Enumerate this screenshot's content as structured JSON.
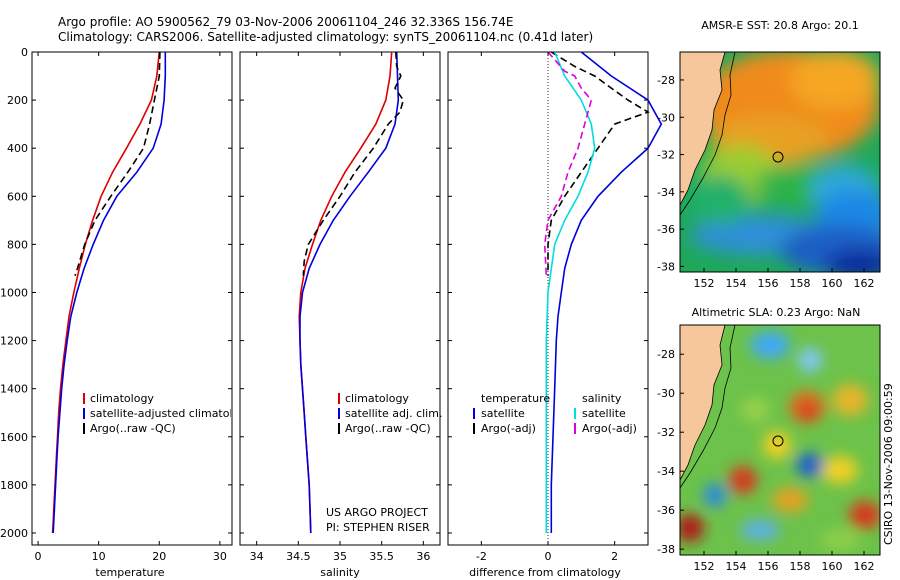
{
  "title_line1": "Argo profile: AO 5900562_79 03-Nov-2006 20061104_246 32.336S 156.74E",
  "title_line2": "Climatology: CARS2006. Satellite-adjusted climatology: synTS_20061104.nc (0.41d later)",
  "credit": "US ARGO PROJECT",
  "pi": "PI: STEPHEN RISER",
  "footer_vertical": "CSIRO 13-Nov-2006 09:00:59",
  "colors": {
    "climatology": "#dd0000",
    "satellite": "#0000dd",
    "argo": "#000000",
    "sat_salinity": "#00dddd",
    "argo_salinity": "#dd00dd",
    "land": "#f5c79a"
  },
  "chart_data": [
    {
      "type": "line",
      "xlabel": "temperature",
      "xlim": [
        -1,
        32
      ],
      "ylim": [
        0,
        2050
      ],
      "y_reversed": true,
      "xticks": [
        0,
        10,
        20,
        30
      ],
      "yticks": [
        0,
        200,
        400,
        600,
        800,
        1000,
        1200,
        1400,
        1600,
        1800,
        2000
      ],
      "legend": [
        "climatology",
        "satellite-adjusted climatology",
        "Argo(..raw -QC)"
      ],
      "series": [
        {
          "name": "climatology",
          "style": "solid",
          "color": "#dd0000",
          "points": [
            [
              20,
              0
            ],
            [
              19.6,
              100
            ],
            [
              18.7,
              200
            ],
            [
              16.8,
              300
            ],
            [
              14.6,
              400
            ],
            [
              12.3,
              500
            ],
            [
              10.4,
              600
            ],
            [
              9.0,
              700
            ],
            [
              7.8,
              800
            ],
            [
              6.8,
              900
            ],
            [
              5.9,
              1000
            ],
            [
              5.1,
              1100
            ],
            [
              4.6,
              1200
            ],
            [
              4.1,
              1300
            ],
            [
              3.7,
              1400
            ],
            [
              3.4,
              1500
            ],
            [
              3.2,
              1600
            ],
            [
              3.0,
              1700
            ],
            [
              2.8,
              1800
            ],
            [
              2.6,
              1900
            ],
            [
              2.4,
              2000
            ]
          ]
        },
        {
          "name": "satellite-adjusted climatology",
          "style": "solid",
          "color": "#0000dd",
          "points": [
            [
              21.0,
              0
            ],
            [
              21.0,
              100
            ],
            [
              20.8,
              200
            ],
            [
              20.3,
              300
            ],
            [
              19.0,
              400
            ],
            [
              16.3,
              500
            ],
            [
              13.0,
              600
            ],
            [
              10.8,
              700
            ],
            [
              9.1,
              800
            ],
            [
              7.6,
              900
            ],
            [
              6.4,
              1000
            ],
            [
              5.4,
              1100
            ],
            [
              4.8,
              1200
            ],
            [
              4.3,
              1300
            ],
            [
              3.9,
              1400
            ],
            [
              3.6,
              1500
            ],
            [
              3.3,
              1600
            ],
            [
              3.1,
              1700
            ],
            [
              2.9,
              1800
            ],
            [
              2.7,
              1900
            ],
            [
              2.5,
              2000
            ]
          ]
        },
        {
          "name": "Argo(..raw -QC)",
          "style": "dashed",
          "color": "#000000",
          "points": [
            [
              20.1,
              0
            ],
            [
              20.0,
              100
            ],
            [
              19.2,
              200
            ],
            [
              18.4,
              300
            ],
            [
              17.4,
              400
            ],
            [
              14.8,
              500
            ],
            [
              12.0,
              600
            ],
            [
              9.4,
              700
            ],
            [
              7.7,
              800
            ],
            [
              6.5,
              900
            ],
            [
              6.1,
              930
            ]
          ]
        }
      ]
    },
    {
      "type": "line",
      "xlabel": "salinity",
      "xlim": [
        33.8,
        36.2
      ],
      "ylim": [
        0,
        2050
      ],
      "y_reversed": true,
      "xticks": [
        34,
        34.5,
        35,
        35.5,
        36
      ],
      "legend": [
        "climatology",
        "satellite adj. clim.",
        "Argo(..raw -QC)"
      ],
      "series": [
        {
          "name": "climatology",
          "style": "solid",
          "color": "#dd0000",
          "points": [
            [
              35.62,
              0
            ],
            [
              35.6,
              100
            ],
            [
              35.55,
              200
            ],
            [
              35.43,
              300
            ],
            [
              35.25,
              400
            ],
            [
              35.06,
              500
            ],
            [
              34.9,
              600
            ],
            [
              34.77,
              700
            ],
            [
              34.67,
              800
            ],
            [
              34.58,
              900
            ],
            [
              34.53,
              1000
            ],
            [
              34.51,
              1100
            ],
            [
              34.52,
              1200
            ],
            [
              34.53,
              1300
            ],
            [
              34.55,
              1400
            ],
            [
              34.57,
              1500
            ],
            [
              34.59,
              1600
            ],
            [
              34.61,
              1700
            ],
            [
              34.63,
              1800
            ],
            [
              34.64,
              1900
            ],
            [
              34.65,
              2000
            ]
          ]
        },
        {
          "name": "satellite adj. clim.",
          "style": "solid",
          "color": "#0000dd",
          "points": [
            [
              35.68,
              0
            ],
            [
              35.69,
              100
            ],
            [
              35.7,
              200
            ],
            [
              35.66,
              300
            ],
            [
              35.55,
              400
            ],
            [
              35.34,
              500
            ],
            [
              35.12,
              600
            ],
            [
              34.92,
              700
            ],
            [
              34.76,
              800
            ],
            [
              34.63,
              900
            ],
            [
              34.55,
              1000
            ],
            [
              34.52,
              1100
            ],
            [
              34.52,
              1200
            ],
            [
              34.53,
              1300
            ],
            [
              34.55,
              1400
            ],
            [
              34.57,
              1500
            ],
            [
              34.59,
              1600
            ],
            [
              34.61,
              1700
            ],
            [
              34.63,
              1800
            ],
            [
              34.64,
              1900
            ],
            [
              34.65,
              2000
            ]
          ]
        },
        {
          "name": "Argo(..raw -QC)",
          "style": "dashed",
          "color": "#000000",
          "points": [
            [
              35.67,
              0
            ],
            [
              35.68,
              60
            ],
            [
              35.73,
              100
            ],
            [
              35.66,
              150
            ],
            [
              35.76,
              200
            ],
            [
              35.72,
              250
            ],
            [
              35.58,
              300
            ],
            [
              35.4,
              400
            ],
            [
              35.18,
              500
            ],
            [
              35.0,
              600
            ],
            [
              34.8,
              700
            ],
            [
              34.62,
              800
            ],
            [
              34.57,
              870
            ],
            [
              34.56,
              930
            ]
          ]
        }
      ]
    },
    {
      "type": "line",
      "xlabel": "difference from climatology",
      "xlim": [
        -3,
        3
      ],
      "ylim": [
        0,
        2050
      ],
      "y_reversed": true,
      "xticks": [
        -2,
        0,
        2
      ],
      "zero_line": "dotted",
      "legend_groups": [
        {
          "header": "temperature",
          "entries": [
            "satellite",
            "Argo(-adj)"
          ]
        },
        {
          "header": "salinity",
          "entries": [
            "satellite",
            "Argo(-adj)"
          ]
        }
      ],
      "series": [
        {
          "name": "satellite",
          "group": "temperature",
          "style": "solid",
          "color": "#0000dd",
          "points": [
            [
              1.0,
              0
            ],
            [
              1.9,
              100
            ],
            [
              3.0,
              200
            ],
            [
              3.4,
              300
            ],
            [
              3.0,
              400
            ],
            [
              2.2,
              500
            ],
            [
              1.5,
              600
            ],
            [
              1.0,
              700
            ],
            [
              0.7,
              800
            ],
            [
              0.5,
              900
            ],
            [
              0.4,
              1000
            ],
            [
              0.3,
              1100
            ],
            [
              0.25,
              1200
            ],
            [
              0.2,
              1400
            ],
            [
              0.15,
              1600
            ],
            [
              0.1,
              1800
            ],
            [
              0.1,
              2000
            ]
          ]
        },
        {
          "name": "Argo(-adj)",
          "group": "temperature",
          "style": "dashed",
          "color": "#000000",
          "points": [
            [
              0.1,
              0
            ],
            [
              0.8,
              60
            ],
            [
              1.4,
              100
            ],
            [
              1.9,
              150
            ],
            [
              2.4,
              200
            ],
            [
              3.0,
              250
            ],
            [
              2.0,
              300
            ],
            [
              1.5,
              400
            ],
            [
              1.0,
              500
            ],
            [
              0.5,
              600
            ],
            [
              0.1,
              700
            ],
            [
              0.0,
              800
            ],
            [
              0.0,
              930
            ]
          ]
        },
        {
          "name": "satellite",
          "group": "salinity",
          "style": "solid",
          "color": "#00dddd",
          "points": [
            [
              0.2,
              0
            ],
            [
              0.5,
              100
            ],
            [
              1.0,
              200
            ],
            [
              1.3,
              300
            ],
            [
              1.4,
              400
            ],
            [
              1.2,
              500
            ],
            [
              0.9,
              600
            ],
            [
              0.5,
              700
            ],
            [
              0.2,
              800
            ],
            [
              0.0,
              1000
            ],
            [
              -0.05,
              1200
            ],
            [
              -0.05,
              1600
            ],
            [
              -0.05,
              2000
            ]
          ]
        },
        {
          "name": "Argo(-adj)",
          "group": "salinity",
          "style": "dashed",
          "color": "#dd00dd",
          "points": [
            [
              0.0,
              0
            ],
            [
              0.5,
              80
            ],
            [
              0.8,
              100
            ],
            [
              1.0,
              150
            ],
            [
              1.3,
              200
            ],
            [
              1.1,
              300
            ],
            [
              1.0,
              350
            ],
            [
              0.9,
              400
            ],
            [
              0.6,
              500
            ],
            [
              0.4,
              600
            ],
            [
              0.0,
              700
            ],
            [
              -0.1,
              800
            ],
            [
              -0.05,
              930
            ]
          ]
        }
      ]
    },
    {
      "type": "heatmap",
      "title": "AMSR-E SST: 20.8  Argo: 20.1",
      "xlim": [
        150.5,
        163
      ],
      "ylim": [
        -38.3,
        -26.5
      ],
      "xticks": [
        152,
        154,
        156,
        158,
        160,
        162
      ],
      "yticks": [
        -28,
        -30,
        -32,
        -34,
        -36,
        -38
      ],
      "profile_location": [
        156.74,
        -32.336
      ]
    },
    {
      "type": "heatmap",
      "title": "Altimetric SLA: 0.23  Argo: NaN",
      "xlim": [
        150.5,
        163
      ],
      "ylim": [
        -38.3,
        -26.5
      ],
      "xticks": [
        152,
        154,
        156,
        158,
        160,
        162
      ],
      "yticks": [
        -28,
        -30,
        -32,
        -34,
        -36,
        -38
      ],
      "profile_location": [
        156.74,
        -32.336
      ]
    }
  ]
}
